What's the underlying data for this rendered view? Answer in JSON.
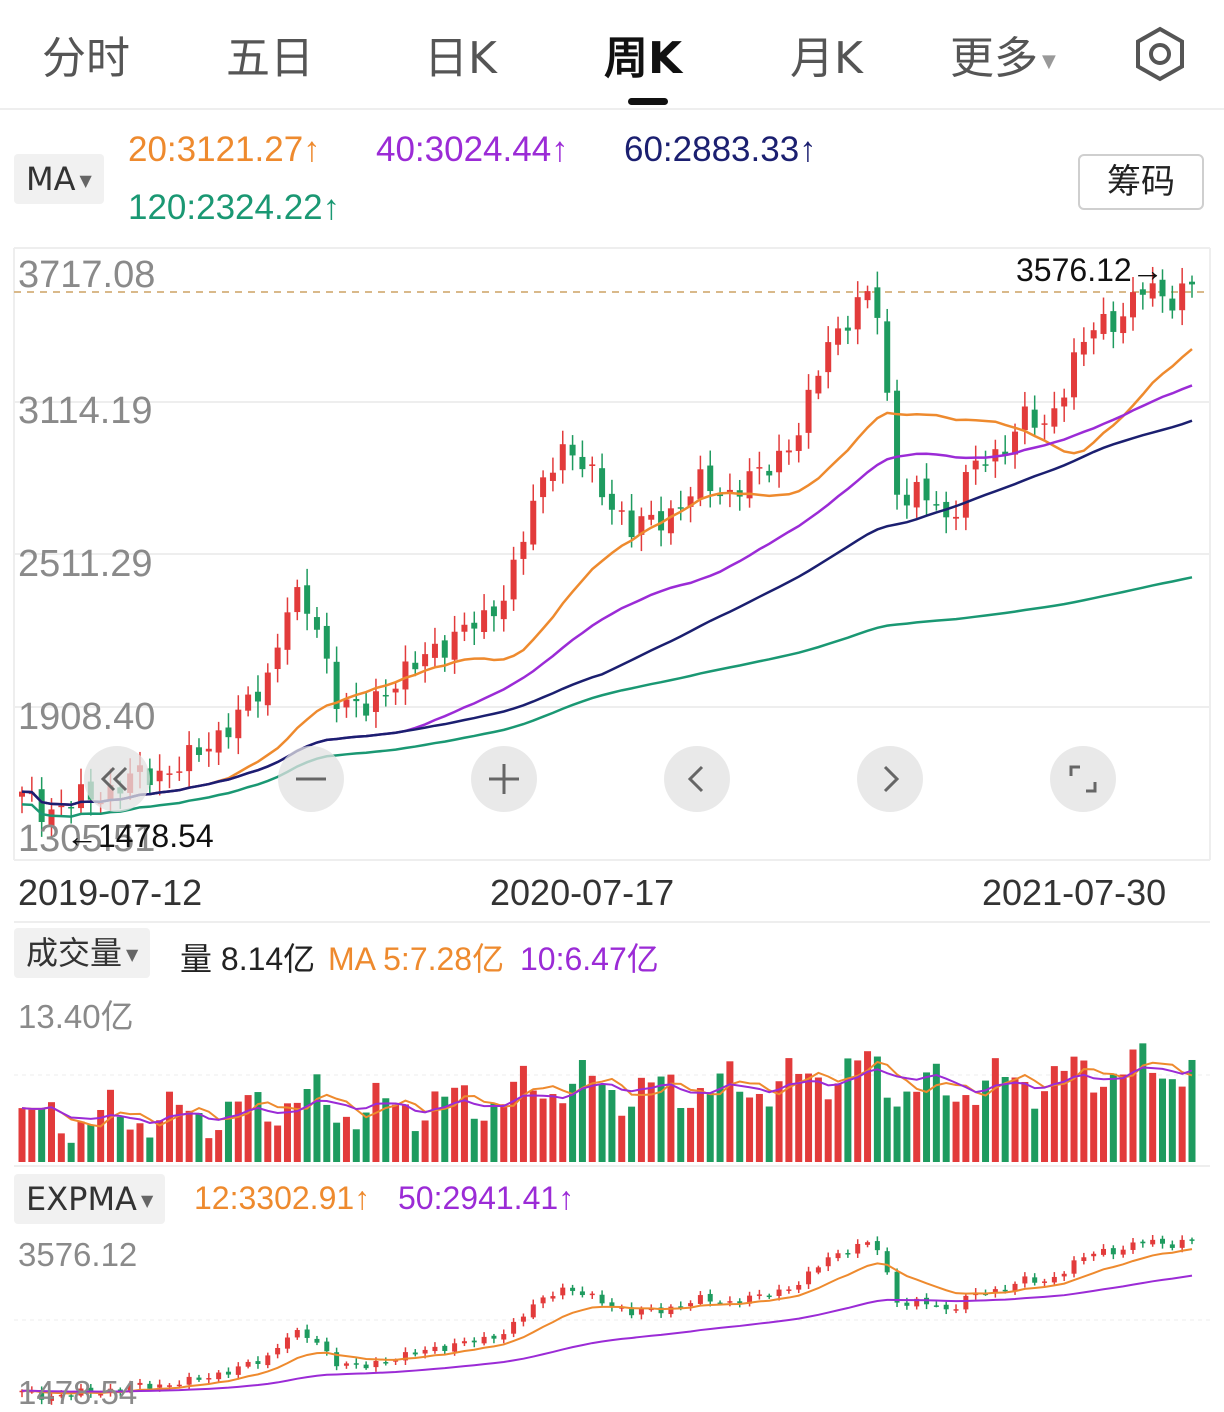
{
  "tabs": [
    {
      "label": "分时"
    },
    {
      "label": "五日"
    },
    {
      "label": "日K"
    },
    {
      "label": "周K"
    },
    {
      "label": "月K"
    },
    {
      "label": "更多"
    }
  ],
  "active_tab": "周K",
  "ma_selector": {
    "label": "MA"
  },
  "ma_legend": [
    {
      "text": "20:3121.27↑",
      "color": "#ee8a2e"
    },
    {
      "text": "40:3024.44↑",
      "color": "#9b2bd6"
    },
    {
      "text": "60:2883.33↑",
      "color": "#1b1f70"
    },
    {
      "text": "120:2324.22↑",
      "color": "#1a9873"
    }
  ],
  "chips_button": {
    "label": "筹码"
  },
  "main_axis": {
    "labels": [
      "3717.08",
      "3114.19",
      "2511.29",
      "1908.40",
      "1305.51"
    ],
    "max_marker": "3576.12→",
    "min_marker": "←1478.54",
    "dates": [
      "2019-07-12",
      "2020-07-17",
      "2021-07-30"
    ]
  },
  "volume_panel": {
    "selector": "成交量",
    "legend": [
      {
        "text": "量 8.14亿",
        "color": "#222222"
      },
      {
        "text": "MA 5:7.28亿",
        "color": "#ee8a2e"
      },
      {
        "text": "10:6.47亿",
        "color": "#9b2bd6"
      }
    ],
    "max_label": "13.40亿"
  },
  "expma_panel": {
    "selector": "EXPMA",
    "legend": [
      {
        "text": "12:3302.91↑",
        "color": "#ee8a2e"
      },
      {
        "text": "50:2941.41↑",
        "color": "#9b2bd6"
      }
    ],
    "labels": [
      "3576.12",
      "1478.54"
    ]
  },
  "colors": {
    "up": "#e23b3b",
    "down": "#1e9b5f",
    "ma20": "#ee8a2e",
    "ma40": "#9b2bd6",
    "ma60": "#1b1f70",
    "ma120": "#1a9873"
  },
  "chart_data": {
    "type": "candlestick",
    "title": "",
    "period": "weekly",
    "date_labels": [
      "2019-07-12",
      "2020-07-17",
      "2021-07-30"
    ],
    "ylim": [
      1305.51,
      3717.08
    ],
    "ticks": [
      3717.08,
      3114.19,
      2511.29,
      1908.4,
      1305.51
    ],
    "close_anchors": [
      1550,
      1500,
      1530,
      1560,
      1600,
      1640,
      1660,
      1700,
      1800,
      1880,
      2000,
      2350,
      2250,
      1930,
      1880,
      2000,
      2050,
      2150,
      2200,
      2250,
      2400,
      2700,
      2950,
      2850,
      2750,
      2600,
      2650,
      2700,
      2800,
      2750,
      2800,
      2900,
      3000,
      3350,
      3450,
      3550,
      2700,
      2750,
      2650,
      2850,
      2900,
      3050,
      3000,
      3250,
      3400,
      3450,
      3550,
      3520,
      3576
    ],
    "ma_last": {
      "MA20": 3121.27,
      "MA40": 3024.44,
      "MA60": 2883.33,
      "MA120": 2324.22
    },
    "volume_max": 13.4,
    "volume_last": 8.14,
    "volume_ma5": 7.28,
    "volume_ma10": 6.47,
    "expma_last": {
      "EXPMA12": 3302.91,
      "EXPMA50": 2941.41
    }
  }
}
